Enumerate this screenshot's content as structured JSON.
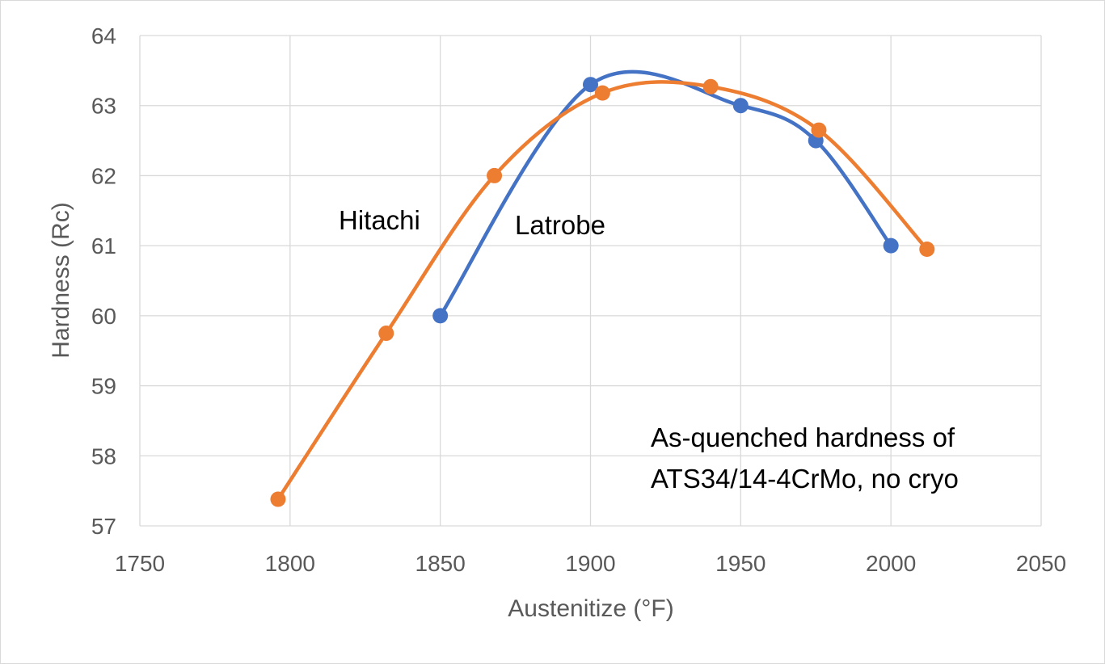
{
  "chart_data": {
    "type": "scatter",
    "title": "",
    "xlabel": "Austenitize (°F)",
    "ylabel": "Hardness (Rc)",
    "xlim": [
      1750,
      2050
    ],
    "ylim": [
      57,
      64
    ],
    "xticks": [
      1750,
      1800,
      1850,
      1900,
      1950,
      2000,
      2050
    ],
    "yticks": [
      57,
      58,
      59,
      60,
      61,
      62,
      63,
      64
    ],
    "grid": true,
    "smoothed_lines": true,
    "legend": "none",
    "series": [
      {
        "name": "Latrobe",
        "color": "#4472C4",
        "points": [
          {
            "x": 1850,
            "y": 60.0
          },
          {
            "x": 1900,
            "y": 63.3
          },
          {
            "x": 1950,
            "y": 63.0
          },
          {
            "x": 1975,
            "y": 62.5
          },
          {
            "x": 2000,
            "y": 61.0
          }
        ]
      },
      {
        "name": "Hitachi",
        "color": "#ED7D31",
        "points": [
          {
            "x": 1796,
            "y": 57.38
          },
          {
            "x": 1832,
            "y": 59.75
          },
          {
            "x": 1868,
            "y": 62.0
          },
          {
            "x": 1904,
            "y": 63.18
          },
          {
            "x": 1940,
            "y": 63.27
          },
          {
            "x": 1976,
            "y": 62.65
          },
          {
            "x": 2012,
            "y": 60.95
          }
        ]
      }
    ],
    "annotations": [
      {
        "text": "As-quenched hardness of",
        "x": 1970,
        "y": 57.7
      },
      {
        "text": "ATS34/14-4CrMo, no cryo",
        "x": 1970,
        "y": 57.4
      }
    ]
  },
  "labels": {
    "hitachi": "Hitachi",
    "latrobe": "Latrobe"
  }
}
